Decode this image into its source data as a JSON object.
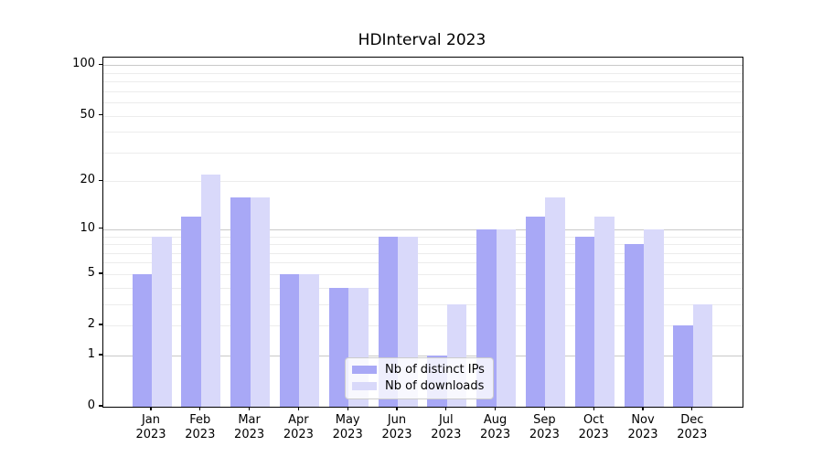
{
  "chart_data": {
    "type": "bar",
    "title": "HDInterval 2023",
    "categories": [
      "Jan",
      "Feb",
      "Mar",
      "Apr",
      "May",
      "Jun",
      "Jul",
      "Aug",
      "Sep",
      "Oct",
      "Nov",
      "Dec"
    ],
    "x_tick_year": "2023",
    "series": [
      {
        "name": "Nb of distinct IPs",
        "color": "#a8a8f6",
        "values": [
          5,
          12,
          16,
          5,
          4,
          9,
          1,
          10,
          12,
          9,
          8,
          2
        ]
      },
      {
        "name": "Nb of downloads",
        "color": "#d9d9fa",
        "values": [
          9,
          22,
          16,
          5,
          4,
          9,
          3,
          10,
          16,
          12,
          10,
          3
        ]
      }
    ],
    "y_axis": {
      "scale": "log(1+x)",
      "tick_labels": [
        0,
        1,
        2,
        5,
        10,
        20,
        50,
        100
      ],
      "major_gridlines": [
        1,
        10,
        100
      ],
      "minor_gridlines": [
        2,
        3,
        4,
        5,
        6,
        7,
        8,
        9,
        20,
        30,
        40,
        50,
        60,
        70,
        80,
        90
      ],
      "ylim": [
        0,
        110
      ]
    },
    "legend": {
      "position": "lower center",
      "entries": [
        "Nb of distinct IPs",
        "Nb of downloads"
      ]
    },
    "grid": true
  },
  "colors": {
    "background": "#ffffff",
    "spine": "#000000",
    "major_grid": "#c9c9c9",
    "minor_grid": "#ececec",
    "bar_dark": "#a8a8f6",
    "bar_light": "#d9d9fa"
  }
}
